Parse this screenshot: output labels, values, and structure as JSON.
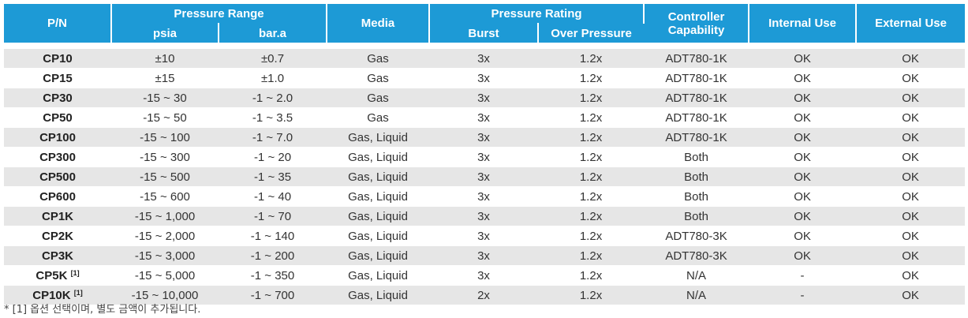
{
  "header": {
    "pn": "P/N",
    "pressure_range": "Pressure Range",
    "psia": "psia",
    "bara": "bar.a",
    "media": "Media",
    "pressure_rating": "Pressure Rating",
    "burst": "Burst",
    "over_pressure": "Over Pressure",
    "controller_1": "Controller",
    "controller_2": "Capability",
    "internal_use": "Internal Use",
    "external_use": "External Use"
  },
  "rows": [
    {
      "pn": "CP10",
      "sup": "",
      "psia": "±10",
      "bara": "±0.7",
      "media": "Gas",
      "burst": "3x",
      "over": "1.2x",
      "controller": "ADT780-1K",
      "internal": "OK",
      "external": "OK"
    },
    {
      "pn": "CP15",
      "sup": "",
      "psia": "±15",
      "bara": "±1.0",
      "media": "Gas",
      "burst": "3x",
      "over": "1.2x",
      "controller": "ADT780-1K",
      "internal": "OK",
      "external": "OK"
    },
    {
      "pn": "CP30",
      "sup": "",
      "psia": "-15 ~ 30",
      "bara": "-1 ~ 2.0",
      "media": "Gas",
      "burst": "3x",
      "over": "1.2x",
      "controller": "ADT780-1K",
      "internal": "OK",
      "external": "OK"
    },
    {
      "pn": "CP50",
      "sup": "",
      "psia": "-15 ~ 50",
      "bara": "-1 ~ 3.5",
      "media": "Gas",
      "burst": "3x",
      "over": "1.2x",
      "controller": "ADT780-1K",
      "internal": "OK",
      "external": "OK"
    },
    {
      "pn": "CP100",
      "sup": "",
      "psia": "-15 ~ 100",
      "bara": "-1 ~ 7.0",
      "media": "Gas, Liquid",
      "burst": "3x",
      "over": "1.2x",
      "controller": "ADT780-1K",
      "internal": "OK",
      "external": "OK"
    },
    {
      "pn": "CP300",
      "sup": "",
      "psia": "-15 ~ 300",
      "bara": "-1 ~ 20",
      "media": "Gas, Liquid",
      "burst": "3x",
      "over": "1.2x",
      "controller": "Both",
      "internal": "OK",
      "external": "OK"
    },
    {
      "pn": "CP500",
      "sup": "",
      "psia": "-15 ~ 500",
      "bara": "-1 ~ 35",
      "media": "Gas, Liquid",
      "burst": "3x",
      "over": "1.2x",
      "controller": "Both",
      "internal": "OK",
      "external": "OK"
    },
    {
      "pn": "CP600",
      "sup": "",
      "psia": "-15 ~ 600",
      "bara": "-1 ~ 40",
      "media": "Gas, Liquid",
      "burst": "3x",
      "over": "1.2x",
      "controller": "Both",
      "internal": "OK",
      "external": "OK"
    },
    {
      "pn": "CP1K",
      "sup": "",
      "psia": "-15 ~ 1,000",
      "bara": "-1 ~ 70",
      "media": "Gas, Liquid",
      "burst": "3x",
      "over": "1.2x",
      "controller": "Both",
      "internal": "OK",
      "external": "OK"
    },
    {
      "pn": "CP2K",
      "sup": "",
      "psia": "-15 ~ 2,000",
      "bara": "-1 ~ 140",
      "media": "Gas, Liquid",
      "burst": "3x",
      "over": "1.2x",
      "controller": "ADT780-3K",
      "internal": "OK",
      "external": "OK"
    },
    {
      "pn": "CP3K",
      "sup": "",
      "psia": "-15 ~ 3,000",
      "bara": "-1 ~ 200",
      "media": "Gas, Liquid",
      "burst": "3x",
      "over": "1.2x",
      "controller": "ADT780-3K",
      "internal": "OK",
      "external": "OK"
    },
    {
      "pn": "CP5K",
      "sup": "[1]",
      "psia": "-15 ~ 5,000",
      "bara": "-1 ~ 350",
      "media": "Gas, Liquid",
      "burst": "3x",
      "over": "1.2x",
      "controller": "N/A",
      "internal": "-",
      "external": "OK"
    },
    {
      "pn": "CP10K",
      "sup": "[1]",
      "psia": "-15 ~ 10,000",
      "bara": "-1 ~ 700",
      "media": "Gas, Liquid",
      "burst": "2x",
      "over": "1.2x",
      "controller": "N/A",
      "internal": "-",
      "external": "OK"
    }
  ],
  "footnote": "* [1] 옵션 선택이며, 별도 금액이 추가됩니다.",
  "colors": {
    "header_bg": "#1d9ad6",
    "stripe": "#e6e6e6"
  }
}
